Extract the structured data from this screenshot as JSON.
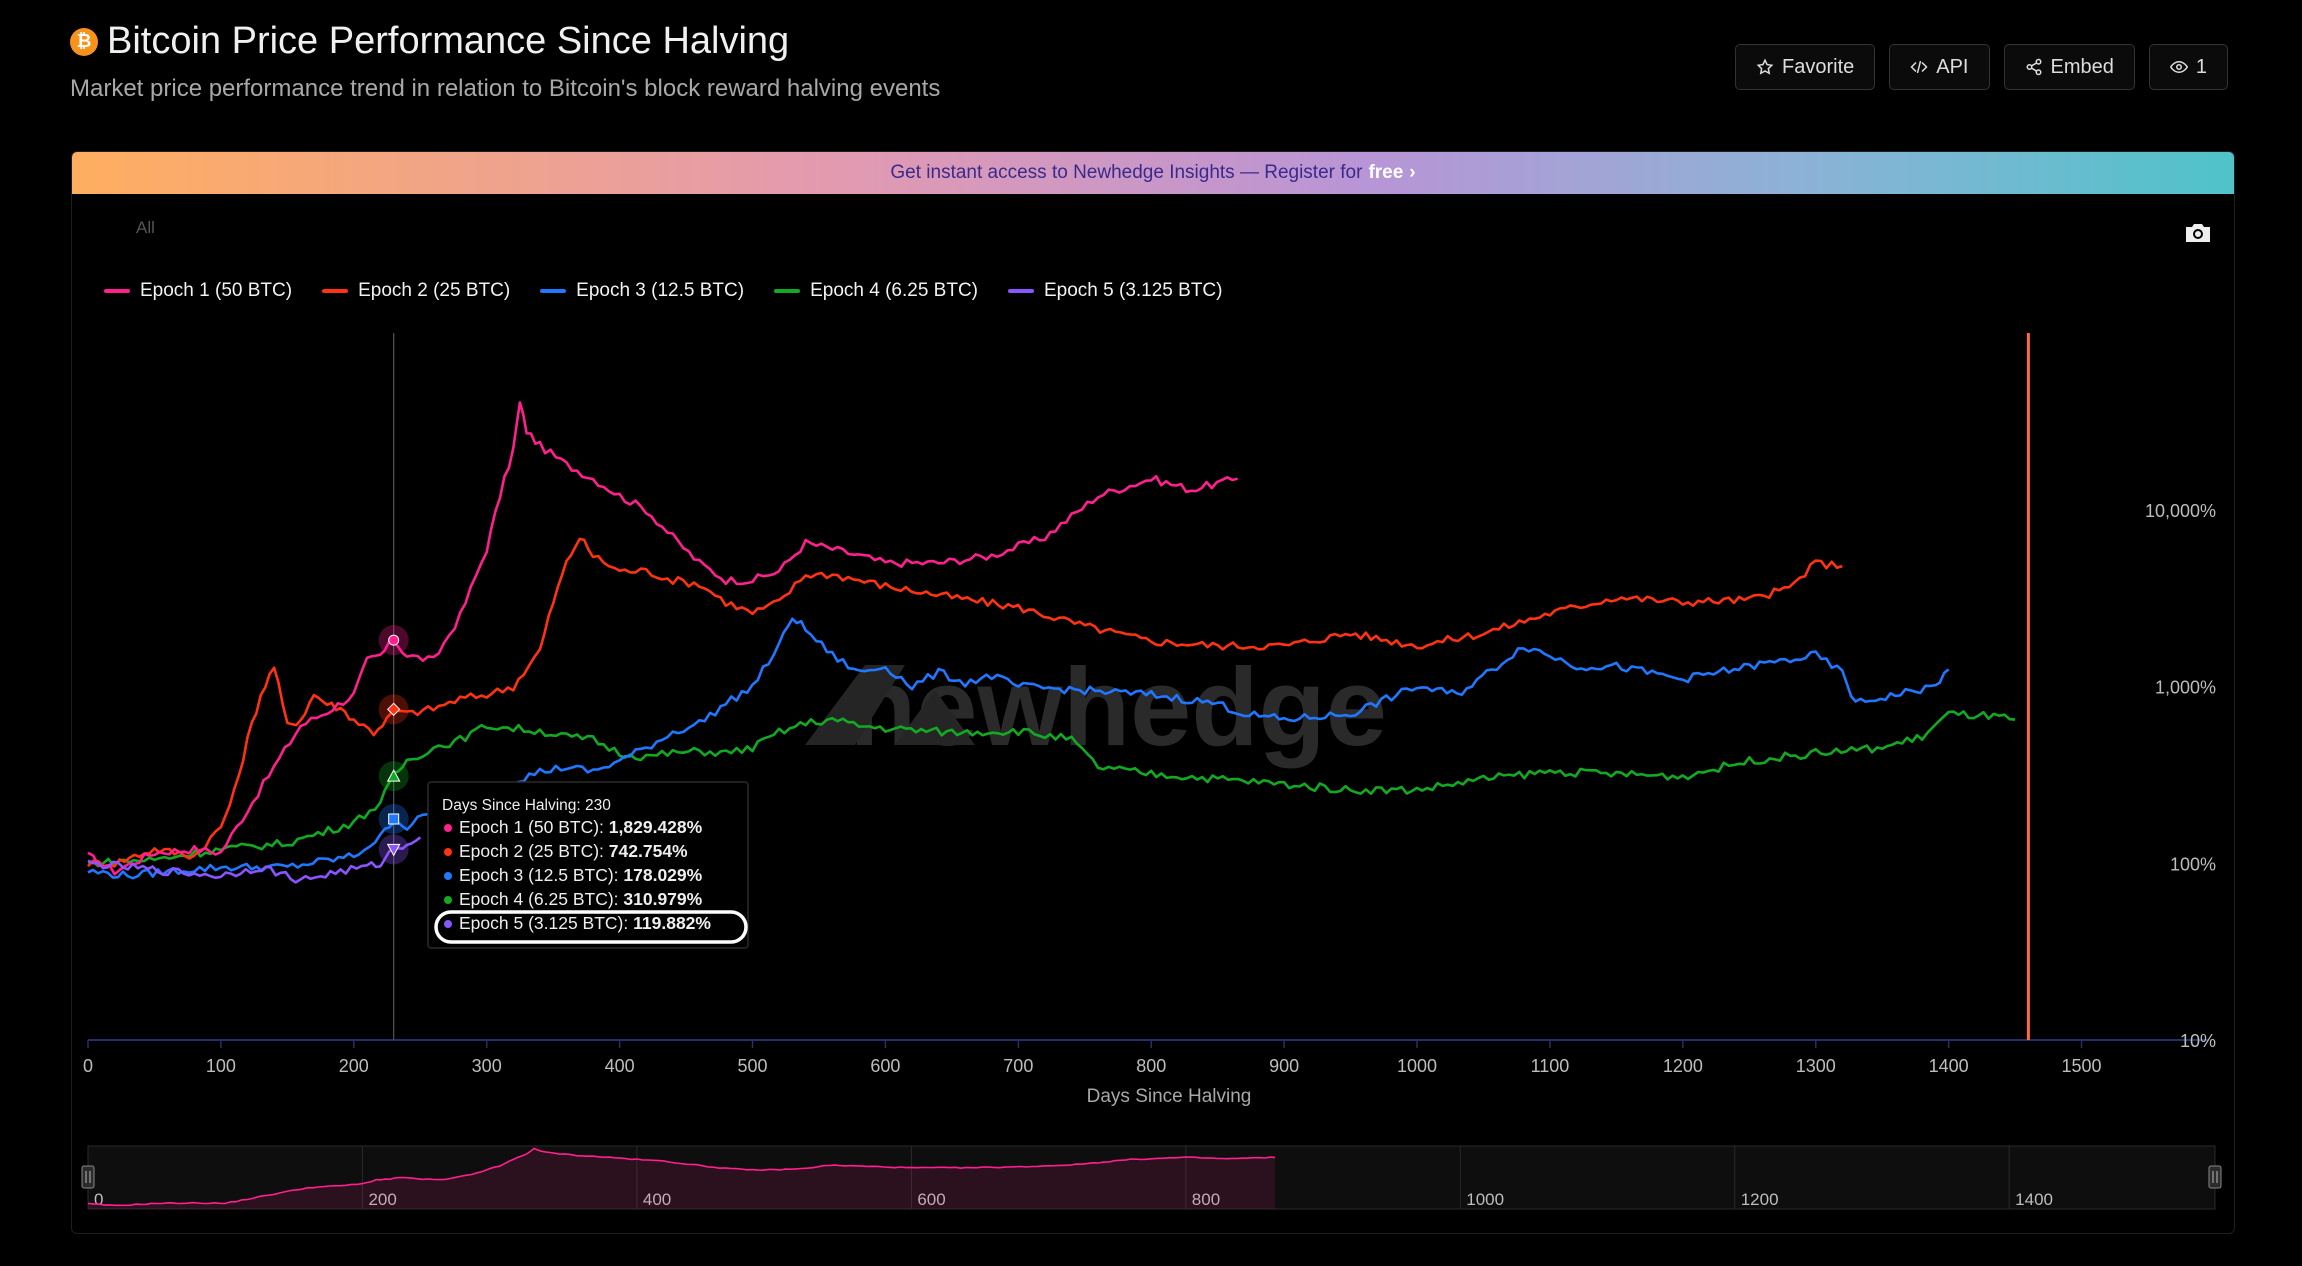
{
  "header": {
    "icon_symbol": "₿",
    "title": "Bitcoin Price Performance Since Halving",
    "subtitle": "Market price performance trend in relation to Bitcoin's block reward halving events"
  },
  "actions": {
    "favorite": "Favorite",
    "api": "API",
    "embed": "Embed",
    "views": "1"
  },
  "banner": {
    "text": "Get instant access to Newhedge Insights — Register for",
    "emphasis": "free",
    "arrow": "›"
  },
  "range_selector": {
    "selected": "All"
  },
  "watermark": "newhedge",
  "colors": {
    "epoch1": "#ff1f8e",
    "epoch2": "#ff3311",
    "epoch3": "#1f78ff",
    "epoch4": "#11aa22",
    "epoch5": "#8a55ff",
    "today_line": "#ff6a3d"
  },
  "tooltip": {
    "header": "Days Since Halving: 230",
    "rows": [
      {
        "label": "Epoch 1 (50 BTC):",
        "value": "1,829.428%"
      },
      {
        "label": "Epoch 2 (25 BTC):",
        "value": "742.754%"
      },
      {
        "label": "Epoch 3 (12.5 BTC):",
        "value": "178.029%"
      },
      {
        "label": "Epoch 4 (6.25 BTC):",
        "value": "310.979%"
      },
      {
        "label": "Epoch 5 (3.125 BTC):",
        "value": "119.882%"
      }
    ]
  },
  "navigator": {
    "ticks": [
      "0",
      "200",
      "400",
      "600",
      "800",
      "1000",
      "1200",
      "1400"
    ]
  },
  "chart_data": {
    "type": "line",
    "xlabel": "Days Since Halving",
    "ylabel": "",
    "xlim": [
      0,
      1550
    ],
    "ylim": [
      10,
      100000
    ],
    "y_scale": "log",
    "x_ticks": [
      "0",
      "100",
      "200",
      "300",
      "400",
      "500",
      "600",
      "700",
      "800",
      "900",
      "1000",
      "1100",
      "1200",
      "1300",
      "1400",
      "1500"
    ],
    "y_ticks": [
      {
        "value": 10,
        "label": "10%"
      },
      {
        "value": 100,
        "label": "100%"
      },
      {
        "value": 1000,
        "label": "1,000%"
      },
      {
        "value": 10000,
        "label": "10,000%"
      }
    ],
    "legend_position": "top-left",
    "crosshair_x": 230,
    "today_marker_x": 1460,
    "series": [
      {
        "name": "Epoch 1 (50 BTC)",
        "x": [
          0,
          20,
          50,
          80,
          100,
          120,
          140,
          160,
          180,
          200,
          210,
          220,
          230,
          240,
          260,
          280,
          300,
          310,
          320,
          325,
          330,
          340,
          360,
          380,
          400,
          420,
          440,
          460,
          480,
          500,
          520,
          540,
          560,
          580,
          600,
          640,
          680,
          720,
          760,
          800,
          830,
          865
        ],
        "y": [
          110,
          90,
          115,
          120,
          115,
          200,
          350,
          600,
          720,
          900,
          1400,
          1500,
          1829,
          1500,
          1400,
          2500,
          6000,
          12000,
          22000,
          40000,
          28000,
          23000,
          18000,
          15000,
          12000,
          10000,
          7000,
          5000,
          4000,
          4000,
          4500,
          6500,
          6000,
          5500,
          5000,
          5000,
          5500,
          7000,
          12000,
          15000,
          13000,
          15000
        ]
      },
      {
        "name": "Epoch 2 (25 BTC)",
        "x": [
          0,
          20,
          50,
          80,
          100,
          110,
          120,
          130,
          140,
          150,
          160,
          170,
          180,
          190,
          200,
          215,
          225,
          230,
          240,
          260,
          280,
          300,
          320,
          340,
          350,
          360,
          370,
          380,
          400,
          420,
          440,
          460,
          480,
          500,
          520,
          540,
          560,
          580,
          600,
          650,
          700,
          750,
          800,
          850,
          900,
          950,
          1000,
          1050,
          1100,
          1150,
          1200,
          1250,
          1280,
          1300,
          1320
        ],
        "y": [
          100,
          100,
          120,
          110,
          160,
          250,
          500,
          900,
          1300,
          600,
          650,
          900,
          800,
          750,
          650,
          550,
          650,
          743,
          700,
          750,
          850,
          900,
          1000,
          1600,
          3000,
          5000,
          7000,
          5500,
          4500,
          4500,
          4000,
          3800,
          3000,
          2600,
          3000,
          4300,
          4300,
          4000,
          3700,
          3200,
          2800,
          2200,
          1800,
          1700,
          1700,
          2000,
          1700,
          2000,
          2600,
          3200,
          3000,
          3100,
          3600,
          5000,
          4800
        ]
      },
      {
        "name": "Epoch 3 (12.5 BTC)",
        "x": [
          0,
          30,
          60,
          100,
          150,
          200,
          220,
          230,
          240,
          260,
          280,
          300,
          320,
          340,
          360,
          380,
          400,
          420,
          440,
          460,
          480,
          500,
          520,
          530,
          540,
          560,
          580,
          600,
          620,
          640,
          660,
          680,
          700,
          750,
          800,
          850,
          870,
          900,
          950,
          1000,
          1030,
          1060,
          1080,
          1100,
          1120,
          1150,
          1200,
          1250,
          1300,
          1320,
          1330,
          1360,
          1390,
          1400
        ],
        "y": [
          90,
          85,
          90,
          95,
          95,
          110,
          140,
          178,
          160,
          200,
          220,
          200,
          290,
          330,
          350,
          330,
          380,
          450,
          550,
          620,
          800,
          1000,
          1700,
          2500,
          2100,
          1500,
          1200,
          1300,
          1000,
          1200,
          1050,
          1150,
          1000,
          950,
          900,
          800,
          700,
          650,
          700,
          1000,
          900,
          1300,
          1700,
          1500,
          1300,
          1300,
          1100,
          1300,
          1500,
          1200,
          800,
          900,
          1000,
          1250
        ]
      },
      {
        "name": "Epoch 4 (6.25 BTC)",
        "x": [
          0,
          50,
          100,
          150,
          200,
          220,
          230,
          240,
          260,
          280,
          300,
          320,
          340,
          360,
          380,
          400,
          420,
          440,
          460,
          480,
          500,
          520,
          540,
          560,
          580,
          600,
          650,
          700,
          740,
          760,
          800,
          850,
          900,
          950,
          1000,
          1050,
          1100,
          1150,
          1200,
          1250,
          1300,
          1350,
          1380,
          1400,
          1430,
          1450
        ],
        "y": [
          100,
          105,
          120,
          130,
          170,
          220,
          311,
          380,
          450,
          500,
          600,
          580,
          560,
          520,
          500,
          420,
          400,
          420,
          430,
          420,
          450,
          550,
          620,
          650,
          600,
          580,
          550,
          560,
          500,
          350,
          320,
          300,
          280,
          260,
          260,
          300,
          330,
          320,
          310,
          380,
          420,
          450,
          520,
          700,
          680,
          650
        ]
      },
      {
        "name": "Epoch 5 (3.125 BTC)",
        "x": [
          0,
          30,
          60,
          100,
          130,
          160,
          190,
          210,
          220,
          230,
          240,
          250
        ],
        "y": [
          100,
          95,
          90,
          85,
          95,
          80,
          90,
          95,
          100,
          120,
          130,
          140
        ]
      }
    ]
  }
}
